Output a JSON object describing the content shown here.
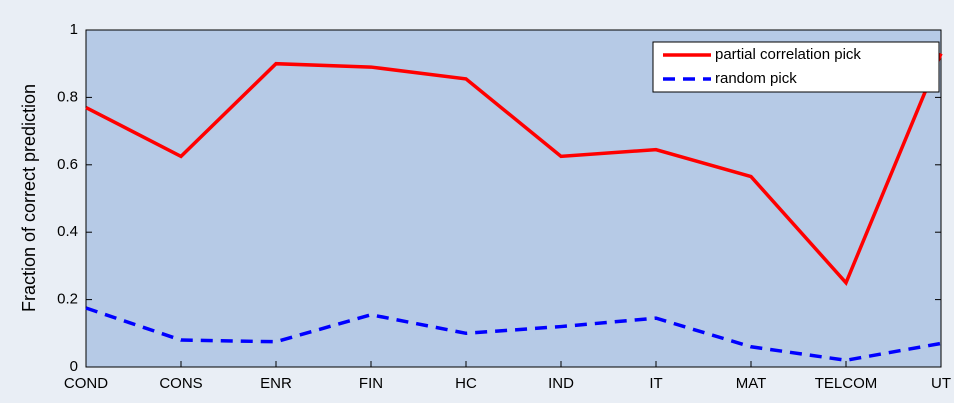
{
  "chart_data": {
    "type": "line",
    "y_label": "Fraction of correct prediction",
    "categories": [
      "COND",
      "CONS",
      "ENR",
      "FIN",
      "HC",
      "IND",
      "IT",
      "MAT",
      "TELCOM",
      "UT"
    ],
    "series": [
      {
        "name": "partial correlation pick",
        "color": "#ff0000",
        "dash": false,
        "values": [
          0.77,
          0.625,
          0.9,
          0.89,
          0.855,
          0.625,
          0.645,
          0.565,
          0.25,
          0.93
        ]
      },
      {
        "name": "random pick",
        "color": "#0000ff",
        "dash": true,
        "values": [
          0.175,
          0.08,
          0.075,
          0.155,
          0.1,
          0.12,
          0.145,
          0.06,
          0.02,
          0.07
        ]
      }
    ],
    "ylim": [
      0,
      1
    ],
    "yticks": [
      0,
      0.2,
      0.4,
      0.6,
      0.8,
      1
    ],
    "legend": "upper right",
    "plot_color": "#b6cae6"
  }
}
